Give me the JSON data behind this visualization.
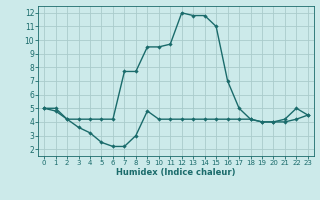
{
  "xlabel": "Humidex (Indice chaleur)",
  "bg_color": "#cceaea",
  "grid_color": "#aacccc",
  "line_color": "#1a6b6b",
  "line1_x": [
    0,
    1,
    2,
    3,
    4,
    5,
    6,
    7,
    8,
    9,
    10,
    11,
    12,
    13,
    14,
    15,
    16,
    17,
    18,
    19,
    20,
    21,
    22,
    23
  ],
  "line1_y": [
    5.0,
    5.0,
    4.2,
    4.2,
    4.2,
    4.2,
    4.2,
    7.7,
    7.7,
    9.5,
    9.5,
    9.7,
    12.0,
    11.8,
    11.8,
    11.0,
    7.0,
    5.0,
    4.2,
    4.0,
    4.0,
    4.2,
    5.0,
    4.5
  ],
  "line2_x": [
    0,
    1,
    2,
    3,
    4,
    5,
    6,
    7,
    8,
    9,
    10,
    11,
    12,
    13,
    14,
    15,
    16,
    17,
    18,
    19,
    20,
    21,
    22,
    23
  ],
  "line2_y": [
    5.0,
    4.8,
    4.2,
    3.6,
    3.2,
    2.5,
    2.2,
    2.2,
    3.0,
    4.8,
    4.2,
    4.2,
    4.2,
    4.2,
    4.2,
    4.2,
    4.2,
    4.2,
    4.2,
    4.0,
    4.0,
    4.0,
    4.2,
    4.5
  ],
  "xlim": [
    -0.5,
    23.5
  ],
  "ylim": [
    1.5,
    12.5
  ],
  "yticks": [
    2,
    3,
    4,
    5,
    6,
    7,
    8,
    9,
    10,
    11,
    12
  ],
  "xticks": [
    0,
    1,
    2,
    3,
    4,
    5,
    6,
    7,
    8,
    9,
    10,
    11,
    12,
    13,
    14,
    15,
    16,
    17,
    18,
    19,
    20,
    21,
    22,
    23
  ],
  "xlabel_fontsize": 6.0,
  "tick_fontsize": 5.0,
  "ytick_fontsize": 5.5,
  "linewidth": 1.0,
  "markersize": 2.2
}
